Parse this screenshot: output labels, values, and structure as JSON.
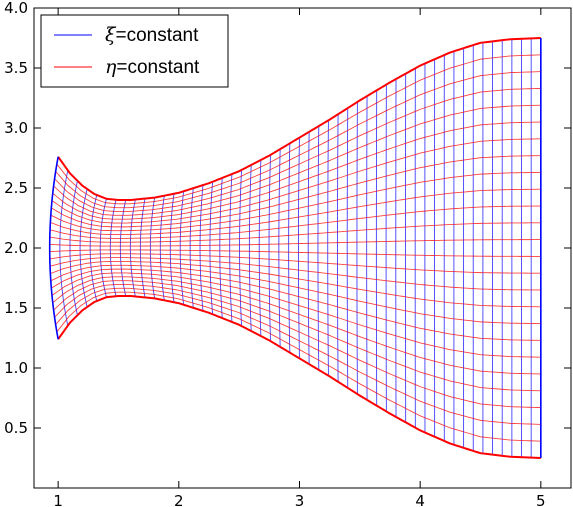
{
  "chart_data": {
    "type": "line",
    "title": "",
    "xlabel": "",
    "ylabel": "",
    "xlim": [
      0.8,
      5.25
    ],
    "ylim": [
      0.0,
      4.0
    ],
    "x_ticks": [
      1,
      2,
      3,
      4,
      5
    ],
    "x_tick_labels": [
      "1",
      "2",
      "3",
      "4",
      "5"
    ],
    "y_ticks": [
      0.5,
      1.0,
      1.5,
      2.0,
      2.5,
      3.0,
      3.5,
      4.0
    ],
    "y_tick_labels": [
      "0.5",
      "1.0",
      "1.5",
      "2.0",
      "2.5",
      "3.0",
      "3.5",
      "4.0"
    ],
    "grid": false,
    "legend_position": "top-left",
    "boundaries": {
      "upper": {
        "x": [
          1.0,
          1.1,
          1.2,
          1.3,
          1.4,
          1.5,
          1.6,
          1.7,
          1.8,
          1.9,
          2.0,
          2.25,
          2.5,
          2.75,
          3.0,
          3.25,
          3.5,
          3.75,
          4.0,
          4.25,
          4.5,
          4.75,
          5.0
        ],
        "y": [
          2.76,
          2.62,
          2.52,
          2.45,
          2.41,
          2.4,
          2.4,
          2.41,
          2.42,
          2.44,
          2.46,
          2.54,
          2.64,
          2.77,
          2.92,
          3.07,
          3.23,
          3.38,
          3.52,
          3.63,
          3.71,
          3.74,
          3.75
        ]
      },
      "lower": {
        "x": [
          1.0,
          1.1,
          1.2,
          1.3,
          1.4,
          1.5,
          1.6,
          1.7,
          1.8,
          1.9,
          2.0,
          2.25,
          2.5,
          2.75,
          3.0,
          3.25,
          3.5,
          3.75,
          4.0,
          4.25,
          4.5,
          4.75,
          5.0
        ],
        "y": [
          1.24,
          1.38,
          1.48,
          1.55,
          1.59,
          1.6,
          1.6,
          1.59,
          1.58,
          1.56,
          1.54,
          1.46,
          1.36,
          1.23,
          1.08,
          0.93,
          0.77,
          0.62,
          0.48,
          0.37,
          0.29,
          0.26,
          0.25
        ]
      },
      "left_bulge": 0.07
    },
    "series": [
      {
        "name": "ξ=constant",
        "symbol": "ξ",
        "suffix": "=constant",
        "color": "#0000ff",
        "count": 51
      },
      {
        "name": "η=constant",
        "symbol": "η",
        "suffix": "=constant",
        "color": "#ff0000",
        "count": 26
      }
    ]
  }
}
